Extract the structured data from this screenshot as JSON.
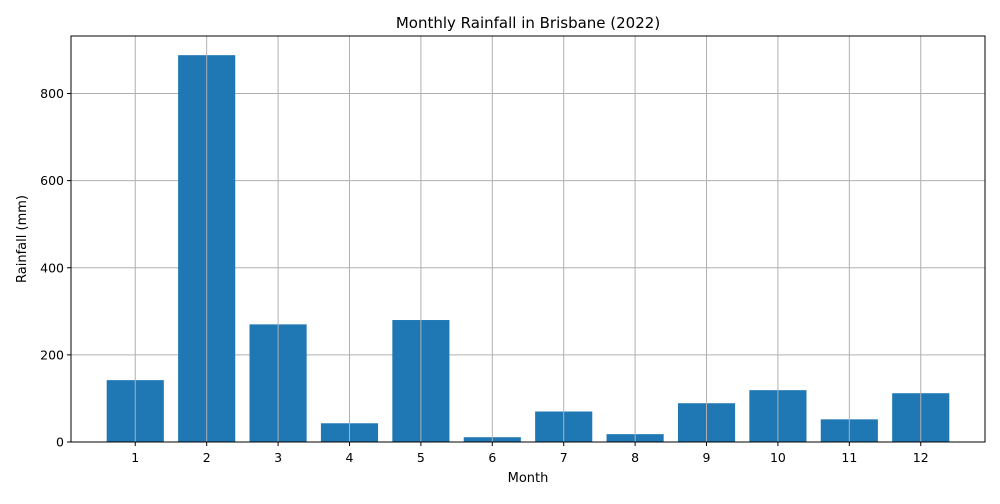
{
  "chart_data": {
    "type": "bar",
    "title": "Monthly Rainfall in Brisbane (2022)",
    "xlabel": "Month",
    "ylabel": "Rainfall (mm)",
    "categories": [
      "1",
      "2",
      "3",
      "4",
      "5",
      "6",
      "7",
      "8",
      "9",
      "10",
      "11",
      "12"
    ],
    "values": [
      142,
      888,
      270,
      43,
      280,
      11,
      70,
      18,
      89,
      119,
      52,
      112
    ],
    "ylim": [
      0,
      932
    ],
    "yticks": [
      0,
      200,
      400,
      600,
      800
    ],
    "grid": true,
    "bar_color": "#1f77b4",
    "grid_color": "#b0b0b0"
  }
}
